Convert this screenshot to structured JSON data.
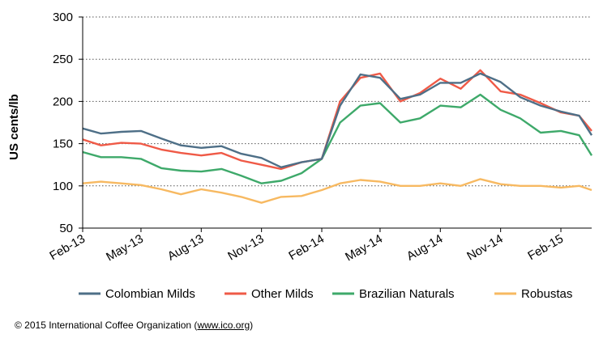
{
  "chart_data": {
    "type": "line",
    "ylabel": "US cents/lb",
    "xlabel": "",
    "ylim": [
      50,
      300
    ],
    "yticks": [
      50,
      100,
      150,
      200,
      250,
      300
    ],
    "xlim": [
      "2013-02-01",
      "2015-03-20"
    ],
    "xticks": [
      {
        "label": "Feb-13",
        "date": "2013-02-01"
      },
      {
        "label": "May-13",
        "date": "2013-05-01"
      },
      {
        "label": "Aug-13",
        "date": "2013-08-01"
      },
      {
        "label": "Nov-13",
        "date": "2013-11-01"
      },
      {
        "label": "Feb-14",
        "date": "2014-02-01"
      },
      {
        "label": "May-14",
        "date": "2014-05-01"
      },
      {
        "label": "Aug-14",
        "date": "2014-08-01"
      },
      {
        "label": "Nov-14",
        "date": "2014-11-01"
      },
      {
        "label": "Feb-15",
        "date": "2015-02-01"
      }
    ],
    "grid": "horizontal dotted",
    "legend_position": "bottom",
    "x": [
      "2013-02-01",
      "2013-03-01",
      "2013-04-01",
      "2013-05-01",
      "2013-06-01",
      "2013-07-01",
      "2013-08-01",
      "2013-09-01",
      "2013-10-01",
      "2013-11-01",
      "2013-12-01",
      "2014-01-01",
      "2014-02-01",
      "2014-03-01",
      "2014-04-01",
      "2014-05-01",
      "2014-06-01",
      "2014-07-01",
      "2014-08-01",
      "2014-09-01",
      "2014-10-01",
      "2014-11-01",
      "2014-12-01",
      "2015-01-01",
      "2015-02-01",
      "2015-03-01",
      "2015-03-20"
    ],
    "series": [
      {
        "name": "Colombian Milds",
        "color": "#4e6f87",
        "values": [
          168,
          162,
          164,
          165,
          156,
          148,
          145,
          147,
          138,
          133,
          122,
          128,
          132,
          195,
          232,
          228,
          203,
          208,
          222,
          222,
          233,
          223,
          205,
          195,
          188,
          183,
          160
        ]
      },
      {
        "name": "Other Milds",
        "color": "#ef5a47",
        "values": [
          155,
          148,
          151,
          150,
          143,
          139,
          136,
          139,
          130,
          125,
          120,
          128,
          132,
          200,
          228,
          233,
          200,
          210,
          227,
          215,
          237,
          212,
          208,
          198,
          187,
          183,
          165
        ]
      },
      {
        "name": "Brazilian Naturals",
        "color": "#3ea96a",
        "values": [
          140,
          134,
          134,
          132,
          121,
          118,
          117,
          120,
          112,
          103,
          106,
          115,
          132,
          175,
          195,
          198,
          175,
          180,
          195,
          193,
          208,
          190,
          180,
          163,
          165,
          160,
          136
        ]
      },
      {
        "name": "Robustas",
        "color": "#f7b961",
        "values": [
          103,
          105,
          103,
          101,
          96,
          90,
          96,
          92,
          87,
          80,
          87,
          88,
          95,
          103,
          107,
          105,
          100,
          100,
          103,
          100,
          108,
          102,
          100,
          100,
          98,
          100,
          95
        ]
      }
    ]
  },
  "footer": {
    "text": "© 2015 International Coffee Organization (",
    "link": "www.ico.org",
    "close": ")"
  }
}
